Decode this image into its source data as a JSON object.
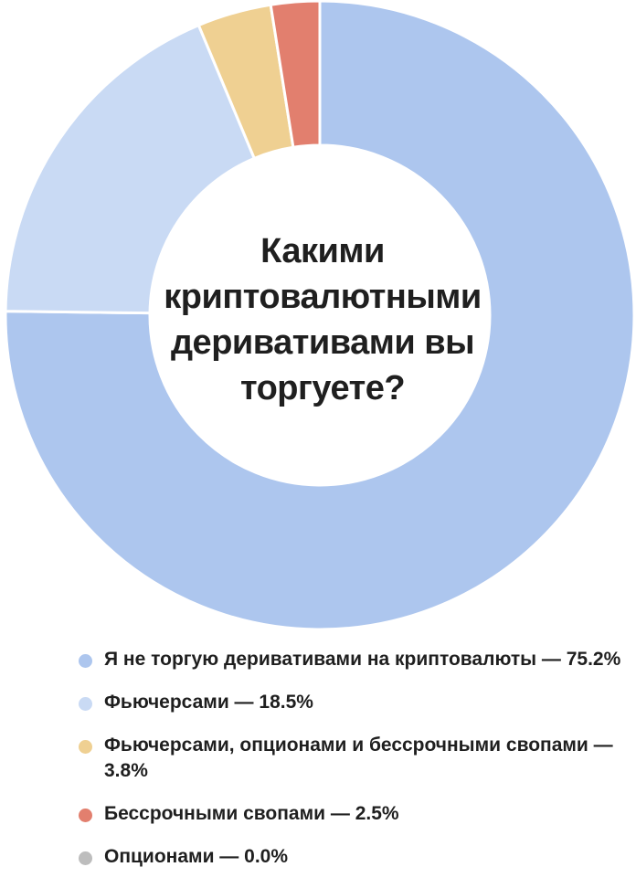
{
  "chart_data": {
    "type": "pie",
    "title": "Какими криптовалютными деривативами вы торгуете?",
    "categories": [
      "Я не торгую деривативами на криптовалюты",
      "Фьючерсами",
      "Фьючерсами, опционами и бессрочными свопами",
      "Бессрочными свопами",
      "Опционами"
    ],
    "values": [
      75.2,
      18.5,
      3.8,
      2.5,
      0.0
    ],
    "colors": [
      "#adc6ee",
      "#c9daf4",
      "#efd092",
      "#e27f6e",
      "#bdbdbd"
    ],
    "legend_placement": "bottom",
    "legend": [
      {
        "label": "Я не торгую деривативами на криптовалюты — 75.2%",
        "color": "#adc6ee"
      },
      {
        "label": "Фьючерсами — 18.5%",
        "color": "#c9daf4"
      },
      {
        "label": "Фьючерсами, опционами и бессрочными свопами — 3.8%",
        "color": "#efd092"
      },
      {
        "label": "Бессрочными свопами — 2.5%",
        "color": "#e27f6e"
      },
      {
        "label": "Опционами — 0.0%",
        "color": "#bdbdbd"
      }
    ]
  }
}
